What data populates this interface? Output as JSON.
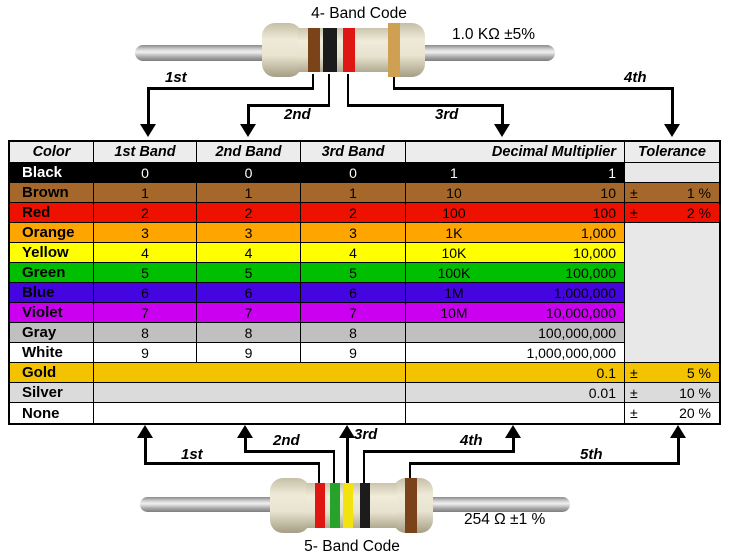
{
  "top_resistor": {
    "title": "4- Band Code",
    "value_label": "1.0 KΩ ±5%",
    "band_names": [
      "brown",
      "black",
      "red",
      "gold"
    ],
    "band_colors": [
      "#7A431A",
      "#1C1C1C",
      "#DE1713",
      "#CFA052"
    ],
    "arrow_labels": [
      "1st",
      "2nd",
      "3rd",
      "4th"
    ]
  },
  "bottom_resistor": {
    "title": "5- Band Code",
    "value_label": "254 Ω ±1 %",
    "band_names": [
      "red",
      "green",
      "yellow",
      "black",
      "brown"
    ],
    "band_colors": [
      "#DE1713",
      "#27A22B",
      "#F2E30E",
      "#1C1C1C",
      "#7A431A"
    ],
    "arrow_labels": [
      "1st",
      "2nd",
      "3rd",
      "4th",
      "5th"
    ]
  },
  "table": {
    "header_bg": "#ECECEC",
    "empty_tol_bg": "#E8E8E8",
    "headers": [
      "Color",
      "1st Band",
      "2nd Band",
      "3rd Band",
      "Decimal Multiplier",
      "Tolerance"
    ],
    "rows": [
      {
        "color": "Black",
        "bg": "#000000",
        "fg": "#FFFFFF",
        "bands": [
          "0",
          "0",
          "0"
        ],
        "mult_short": "1",
        "mult_full": "1",
        "tol_sign": "",
        "tol": ""
      },
      {
        "color": "Brown",
        "bg": "#A5682A",
        "fg": "#000000",
        "bands": [
          "1",
          "1",
          "1"
        ],
        "mult_short": "10",
        "mult_full": "10",
        "tol_sign": "±",
        "tol": "1 %"
      },
      {
        "color": "Red",
        "bg": "#EE1100",
        "fg": "#000000",
        "bands": [
          "2",
          "2",
          "2"
        ],
        "mult_short": "100",
        "mult_full": "100",
        "tol_sign": "±",
        "tol": "2 %"
      },
      {
        "color": "Orange",
        "bg": "#FFA500",
        "fg": "#000000",
        "bands": [
          "3",
          "3",
          "3"
        ],
        "mult_short": "1K",
        "mult_full": "1,000",
        "tol_sign": "",
        "tol": "",
        "tol_merge": true
      },
      {
        "color": "Yellow",
        "bg": "#FFFF00",
        "fg": "#000000",
        "bands": [
          "4",
          "4",
          "4"
        ],
        "mult_short": "10K",
        "mult_full": "10,000",
        "tol_sign": "",
        "tol": "",
        "tol_merge": true
      },
      {
        "color": "Green",
        "bg": "#00BE00",
        "fg": "#000000",
        "bands": [
          "5",
          "5",
          "5"
        ],
        "mult_short": "100K",
        "mult_full": "100,000",
        "tol_sign": "",
        "tol": "",
        "tol_merge": true
      },
      {
        "color": "Blue",
        "bg": "#4505E1",
        "fg": "#000000",
        "bands": [
          "6",
          "6",
          "6"
        ],
        "mult_short": "1M",
        "mult_full": "1,000,000",
        "tol_sign": "",
        "tol": "",
        "tol_merge": true
      },
      {
        "color": "Violet",
        "bg": "#CB00F0",
        "fg": "#000000",
        "bands": [
          "7",
          "7",
          "7"
        ],
        "mult_short": "10M",
        "mult_full": "10,000,000",
        "tol_sign": "",
        "tol": "",
        "tol_merge": true
      },
      {
        "color": "Gray",
        "bg": "#C0C0C0",
        "fg": "#000000",
        "bands": [
          "8",
          "8",
          "8"
        ],
        "mult_short": "",
        "mult_full": "100,000,000",
        "tol_sign": "",
        "tol": "",
        "tol_merge": true
      },
      {
        "color": "White",
        "bg": "#FFFFFF",
        "fg": "#000000",
        "bands": [
          "9",
          "9",
          "9"
        ],
        "mult_short": "",
        "mult_full": "1,000,000,000",
        "tol_sign": "",
        "tol": ""
      },
      {
        "color": "Gold",
        "bg": "#F3C300",
        "fg": "#000000",
        "merged_bands": true,
        "mult_short": "",
        "mult_full": "0.1",
        "tol_sign": "±",
        "tol": "5 %"
      },
      {
        "color": "Silver",
        "bg": "#DBDBDB",
        "fg": "#000000",
        "merged_bands": true,
        "mult_short": "",
        "mult_full": "0.01",
        "tol_sign": "±",
        "tol": "10 %"
      },
      {
        "color": "None",
        "bg": "#FFFFFF",
        "fg": "#000000",
        "merged_bands": true,
        "mult_short": "",
        "mult_full": "",
        "tol_sign": "±",
        "tol": "20 %"
      }
    ]
  }
}
